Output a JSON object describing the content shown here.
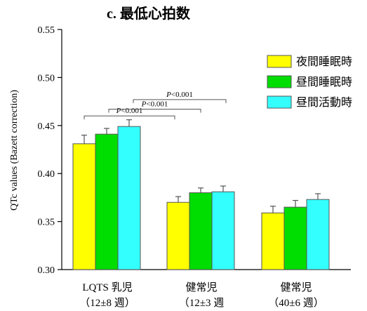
{
  "chart_data": {
    "type": "bar",
    "title": "c. 最低心拍数",
    "ylabel": "QTc values (Bazett correction)",
    "xlabel": "",
    "ylim": [
      0.3,
      0.55
    ],
    "yticks": [
      "0.30",
      "0.35",
      "0.40",
      "0.45",
      "0.50",
      "0.55"
    ],
    "categories": [
      {
        "line1": "LQTS 乳児",
        "line2": "（12±8 週）"
      },
      {
        "line1": "健常児",
        "line2": "（12±3 週"
      },
      {
        "line1": "健常児",
        "line2": "（40±6 週）"
      }
    ],
    "series": [
      {
        "name": "夜間睡眠時",
        "color": "#ffff00",
        "values": [
          0.431,
          0.37,
          0.359
        ],
        "errors": [
          0.009,
          0.006,
          0.007
        ]
      },
      {
        "name": "昼間睡眠時",
        "color": "#00dd00",
        "values": [
          0.441,
          0.38,
          0.365
        ],
        "errors": [
          0.006,
          0.005,
          0.007
        ]
      },
      {
        "name": "昼間活動時",
        "color": "#33ffff",
        "values": [
          0.449,
          0.381,
          0.373
        ],
        "errors": [
          0.007,
          0.006,
          0.006
        ]
      }
    ],
    "legend_position": "top-right",
    "significance": [
      {
        "label": "P<0.001",
        "from_series": 0,
        "to_series": 2,
        "category_from": 0,
        "category_to": 1,
        "value": 0.46
      },
      {
        "label": "P<0.001",
        "from_series": 0,
        "to_series": 1,
        "category_from": 0,
        "category_to": 1,
        "value": 0.467
      },
      {
        "label": "P<0.001",
        "from_series": 0,
        "to_series": 0,
        "category_from": 0,
        "category_to": 1,
        "value": 0.477
      }
    ]
  }
}
